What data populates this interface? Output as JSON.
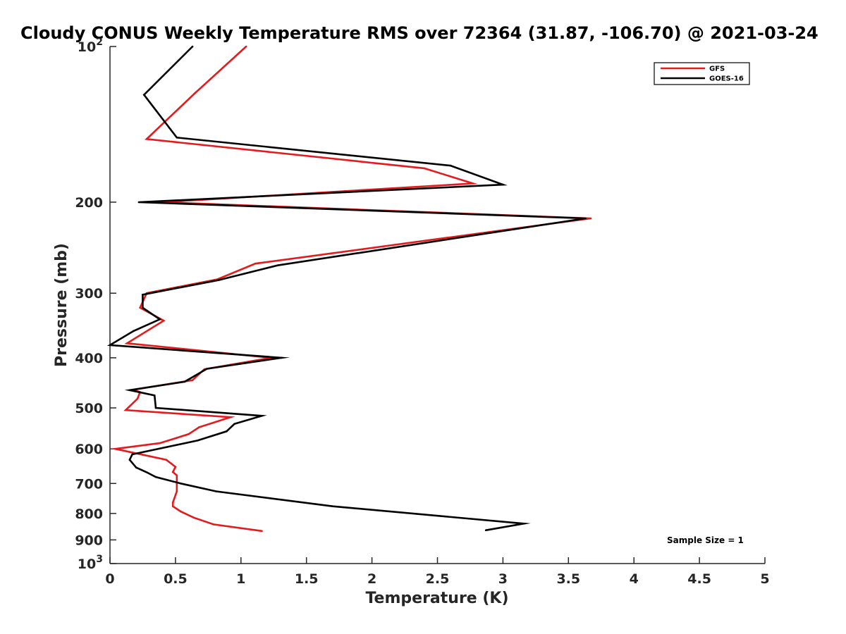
{
  "chart_data": {
    "type": "line",
    "title": "Cloudy CONUS Weekly Temperature RMS over 72364 (31.87, -106.70) @ 2021-03-24",
    "xlabel": "Temperature (K)",
    "ylabel": "Pressure (mb)",
    "xlim": [
      0,
      5
    ],
    "ylim": [
      100,
      1000
    ],
    "yscale": "log",
    "y_reversed": true,
    "grid": false,
    "legend_position": "top-right",
    "x_ticks": [
      "0",
      "0.5",
      "1",
      "1.5",
      "2",
      "2.5",
      "3",
      "3.5",
      "4",
      "4.5",
      "5"
    ],
    "y_ticks": [
      {
        "value": 100,
        "base": "10",
        "exp": "2"
      },
      {
        "value": 200,
        "base": "200",
        "exp": ""
      },
      {
        "value": 300,
        "base": "300",
        "exp": ""
      },
      {
        "value": 400,
        "base": "400",
        "exp": ""
      },
      {
        "value": 500,
        "base": "500",
        "exp": ""
      },
      {
        "value": 600,
        "base": "600",
        "exp": ""
      },
      {
        "value": 700,
        "base": "700",
        "exp": ""
      },
      {
        "value": 800,
        "base": "800",
        "exp": ""
      },
      {
        "value": 900,
        "base": "900",
        "exp": ""
      },
      {
        "value": 1000,
        "base": "10",
        "exp": "3"
      }
    ],
    "annotation": "Sample Size = 1",
    "series": [
      {
        "name": "GFS",
        "color": "#e41a1c",
        "x": [
          1.04,
          0.65,
          0.28,
          2.4,
          2.77,
          0.4,
          3.67,
          1.11,
          0.82,
          0.28,
          0.23,
          0.41,
          0.13,
          1.23,
          0.72,
          0.63,
          0.18,
          0.23,
          0.21,
          0.12,
          0.92,
          0.68,
          0.6,
          0.38,
          0.04,
          0.43,
          0.5,
          0.48,
          0.51,
          0.51,
          0.48,
          0.48,
          0.54,
          0.64,
          0.79,
          1.16
        ],
        "y": [
          100,
          123,
          151,
          172,
          184,
          200,
          215,
          263,
          282,
          300,
          320,
          339,
          375,
          400,
          421,
          442,
          461,
          466,
          480,
          505,
          521,
          545,
          562,
          585,
          600,
          630,
          650,
          665,
          675,
          725,
          762,
          775,
          793,
          815,
          840,
          865
        ]
      },
      {
        "name": "GOES-16",
        "color": "#000000",
        "x": [
          0.63,
          0.26,
          0.51,
          2.6,
          3.0,
          0.22,
          3.63,
          1.28,
          0.83,
          0.25,
          0.25,
          0.38,
          0.18,
          0.0,
          1.31,
          0.74,
          0.57,
          0.15,
          0.34,
          0.35,
          1.16,
          0.95,
          0.89,
          0.67,
          0.17,
          0.15,
          0.2,
          0.28,
          0.35,
          0.54,
          0.81,
          1.7,
          3.16,
          2.87
        ],
        "y": [
          100,
          124,
          150,
          170,
          185,
          200,
          215,
          265,
          283,
          302,
          320,
          337,
          355,
          378,
          400,
          420,
          445,
          462,
          473,
          500,
          518,
          537,
          555,
          578,
          615,
          630,
          652,
          666,
          680,
          700,
          725,
          775,
          837,
          862
        ]
      }
    ]
  }
}
